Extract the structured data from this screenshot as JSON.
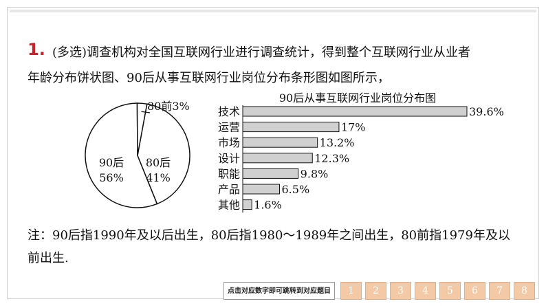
{
  "question": {
    "number": "1.",
    "line1": "(多选)调查机构对全国互联网行业进行调查统计，得到整个互联网行业从业者",
    "line2": "年龄分布饼状图、90后从事互联网行业岗位分布条形图如图所示，",
    "note_line1": "注：90后指1990年及以后出生，80后指1980～1989年之间出生，80前指1979年及以",
    "note_line2": "前出生."
  },
  "chart_data": [
    {
      "type": "pie",
      "categories": [
        "90后",
        "80后",
        "80前"
      ],
      "values": [
        56,
        41,
        3
      ],
      "labels": [
        "56%",
        "41%",
        "3%"
      ],
      "outside_label": "80前3%"
    },
    {
      "type": "bar",
      "orientation": "horizontal",
      "title": "90后从事互联网行业岗位分布图",
      "categories": [
        "技术",
        "运营",
        "市场",
        "设计",
        "职能",
        "产品",
        "其他"
      ],
      "values": [
        39.6,
        17,
        13.2,
        12.3,
        9.8,
        6.5,
        1.6
      ],
      "value_labels": [
        "39.6%",
        "17%",
        "13.2%",
        "12.3%",
        "9.8%",
        "6.5%",
        "1.6%"
      ],
      "bar_color": "#d0d0d0"
    }
  ],
  "nav": {
    "label": "点击对应数字即可跳转到对应题目",
    "buttons": [
      "1",
      "2",
      "3",
      "4",
      "5",
      "6",
      "7",
      "8"
    ]
  }
}
